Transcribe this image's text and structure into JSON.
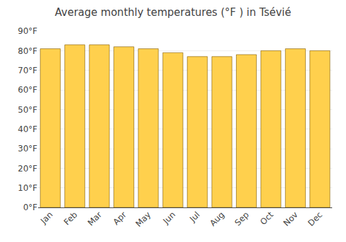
{
  "chart_data": {
    "type": "bar",
    "title": "Average monthly temperatures (°F ) in Tsévié",
    "categories": [
      "Jan",
      "Feb",
      "Mar",
      "Apr",
      "May",
      "Jun",
      "Jul",
      "Aug",
      "Sep",
      "Oct",
      "Nov",
      "Dec"
    ],
    "values": [
      81,
      83,
      83,
      82,
      81,
      79,
      77,
      77,
      78,
      80,
      81,
      80
    ],
    "color": "#FFD04D",
    "ylim": [
      0,
      90
    ],
    "yticks": [
      {
        "value": 0,
        "label": "0°F"
      },
      {
        "value": 10,
        "label": "10°F"
      },
      {
        "value": 20,
        "label": "20°F"
      },
      {
        "value": 30,
        "label": "30°F"
      },
      {
        "value": 40,
        "label": "40°F"
      },
      {
        "value": 50,
        "label": "50°F"
      },
      {
        "value": 60,
        "label": "60°F"
      },
      {
        "value": 70,
        "label": "70°F"
      },
      {
        "value": 80,
        "label": "80°F"
      },
      {
        "value": 90,
        "label": "90°F"
      }
    ],
    "grid": true
  }
}
